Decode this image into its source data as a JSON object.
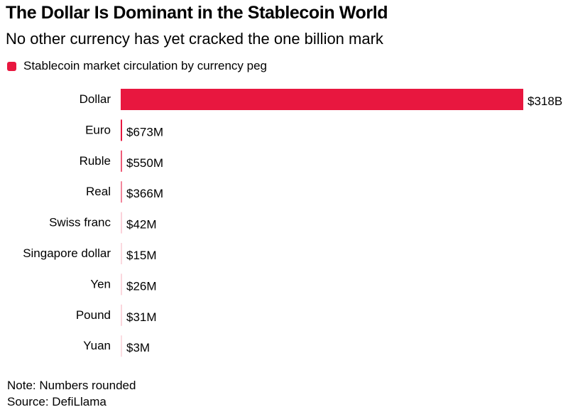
{
  "title": "The Dollar Is Dominant in the Stablecoin World",
  "subtitle": "No other currency has yet cracked the one billion mark",
  "legend": {
    "label": "Stablecoin market circulation by currency peg",
    "color": "#e8173f"
  },
  "note": "Note: Numbers rounded",
  "source": "Source: DefiLlama",
  "chart_data": {
    "type": "bar",
    "orientation": "horizontal",
    "categories": [
      "Dollar",
      "Euro",
      "Ruble",
      "Real",
      "Swiss franc",
      "Singapore dollar",
      "Yen",
      "Pound",
      "Yuan"
    ],
    "values": [
      318000000000,
      673000000,
      550000000,
      366000000,
      42000000,
      15000000,
      26000000,
      31000000,
      3000000
    ],
    "value_labels": [
      "$318B",
      "$673M",
      "$550M",
      "$366M",
      "$42M",
      "$15M",
      "$26M",
      "$31M",
      "$3M"
    ],
    "series": [
      {
        "name": "Stablecoin market circulation by currency peg",
        "color": "#e8173f"
      }
    ],
    "xlim": [
      0,
      318000000000
    ],
    "grid": false,
    "legend_position": "top-left"
  }
}
